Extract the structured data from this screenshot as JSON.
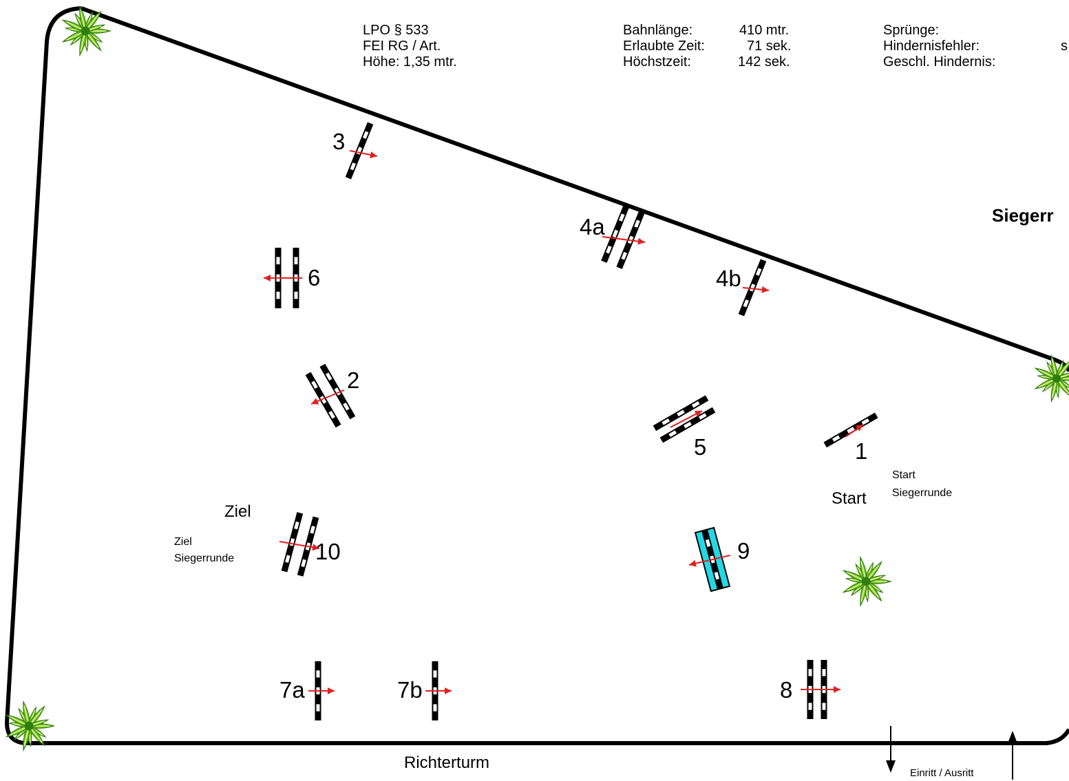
{
  "header": {
    "col1": [
      "LPO § 533",
      "FEI RG / Art.",
      "Höhe: 1,35 mtr."
    ],
    "col2_labels": [
      "Bahnlänge:",
      "Erlaubte Zeit:",
      "Höchstzeit:"
    ],
    "col2_values": [
      "410 mtr.",
      "71 sek.",
      "142 sek."
    ],
    "col3_labels": [
      "Sprünge:",
      "Hindernisfehler:",
      "Geschl. Hindernis:"
    ],
    "col3_cut": "s"
  },
  "side_title": "Siegerr",
  "obstacles": {
    "o1": "1",
    "o2": "2",
    "o3": "3",
    "o4a": "4a",
    "o4b": "4b",
    "o5": "5",
    "o6": "6",
    "o7a": "7a",
    "o7b": "7b",
    "o8": "8",
    "o9": "9",
    "o10": "10"
  },
  "labels": {
    "start": "Start",
    "start_siegerrunde": [
      "Start",
      "Siegerrunde"
    ],
    "ziel": "Ziel",
    "ziel_siegerrunde": [
      "Ziel",
      "Siegerrunde"
    ],
    "richterturm": "Richterturm",
    "einritt": "Einritt / Ausritt"
  },
  "colors": {
    "outline": "#000000",
    "arrow": "#e02020",
    "water": "#22d8e6",
    "plant": "#7ac820",
    "plant_dark": "#2e7d10",
    "plant_light": "#e6f5a0"
  },
  "icons": [
    "plant-icon",
    "arrow-down-icon",
    "arrow-up-icon"
  ]
}
